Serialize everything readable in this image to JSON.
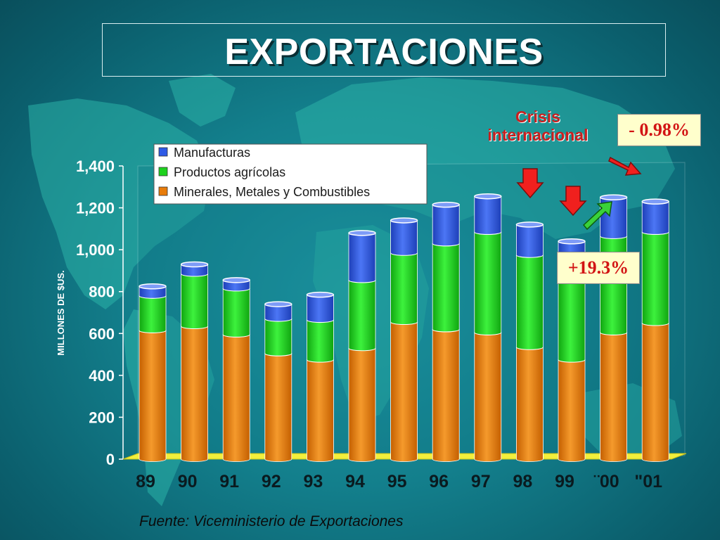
{
  "title": "EXPORTACIONES",
  "source": "Fuente: Viceministerio de Exportaciones",
  "annotations": {
    "crisis_line1": "Crisis",
    "crisis_line2": "internacional",
    "change_negative": "- 0.98%",
    "change_positive": "+19.3%"
  },
  "colors": {
    "manufacturas": "#2f5ae6",
    "agricolas": "#1ed21e",
    "minerales": "#e87c0a",
    "annotation_red": "#c71f1f",
    "badge_bg": "#ffffcc"
  },
  "chart_data": {
    "type": "bar",
    "stacked": true,
    "three_d": true,
    "ylabel": "MILLONES DE $US.",
    "ylim": [
      0,
      1400
    ],
    "yticks": [
      0,
      200,
      400,
      600,
      800,
      1000,
      1200,
      1400
    ],
    "ytick_labels": [
      "0",
      "200",
      "400",
      "600",
      "800",
      "1,000",
      "1,200",
      "1,400"
    ],
    "categories": [
      "89",
      "90",
      "91",
      "92",
      "93",
      "94",
      "95",
      "96",
      "97",
      "98",
      "99",
      "¨00",
      "\"01"
    ],
    "legend_position": "top-left",
    "grid": false,
    "series": [
      {
        "name": "Minerales, Metales y Combustibles",
        "color": "#e87c0a",
        "values": [
          615,
          635,
          595,
          505,
          475,
          530,
          655,
          620,
          605,
          535,
          475,
          605,
          650
        ]
      },
      {
        "name": "Productos agrícolas",
        "color": "#1ed21e",
        "values": [
          165,
          250,
          220,
          165,
          190,
          325,
          330,
          410,
          480,
          440,
          510,
          460,
          435
        ]
      },
      {
        "name": "Manufacturas",
        "color": "#2f5ae6",
        "values": [
          45,
          45,
          40,
          70,
          120,
          225,
          155,
          185,
          170,
          145,
          55,
          185,
          145
        ]
      }
    ],
    "legend_order": [
      "Manufacturas",
      "Productos agrícolas",
      "Minerales, Metales y Combustibles"
    ]
  }
}
